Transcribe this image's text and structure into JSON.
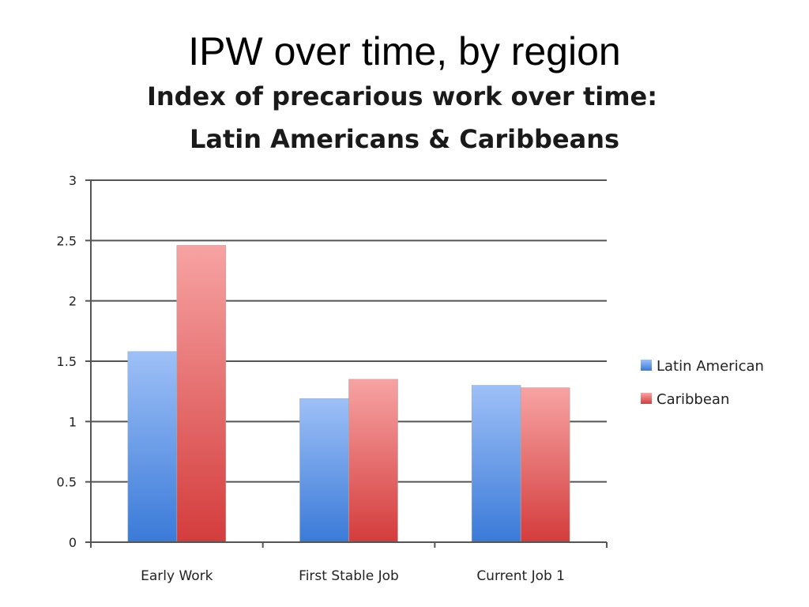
{
  "slide": {
    "title": "IPW over time, by region"
  },
  "chart_data": {
    "type": "bar",
    "title_lines": [
      "Index of precarious work over time:",
      "Latin Americans & Caribbeans"
    ],
    "categories": [
      "Early Work",
      "First Stable Job",
      "Current Job 1"
    ],
    "series": [
      {
        "name": "Latin American",
        "values": [
          1.58,
          1.19,
          1.3
        ],
        "color_light": "#9ec0f7",
        "color_dark": "#3a7ad8"
      },
      {
        "name": "Caribbean",
        "values": [
          2.46,
          1.35,
          1.28
        ],
        "color_light": "#f7a3a3",
        "color_dark": "#d43c3c"
      }
    ],
    "ylim": [
      0,
      3
    ],
    "yticks": [
      0,
      0.5,
      1,
      1.5,
      2,
      2.5,
      3
    ],
    "ytick_labels": [
      "0",
      "0.5",
      "1",
      "1.5",
      "2",
      "2.5",
      "3"
    ],
    "grid": true,
    "legend": "right"
  }
}
